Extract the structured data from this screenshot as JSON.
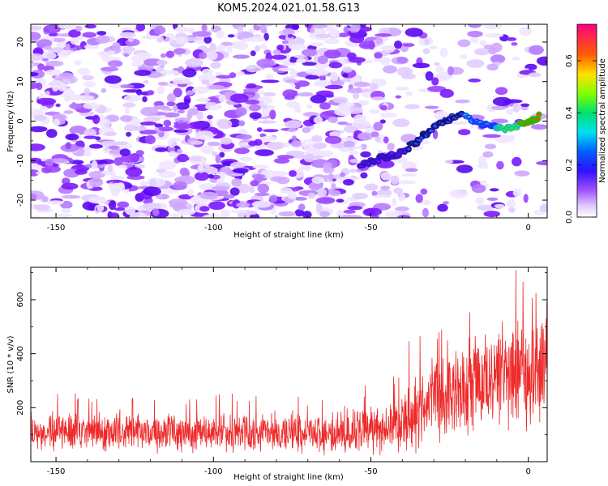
{
  "title": "KOM5.2024.021.01.58.G13",
  "chart_data": [
    {
      "type": "heatmap",
      "xlabel": "Height of straight line (km)",
      "ylabel": "Frequency (Hz)",
      "xlim": [
        -158,
        6
      ],
      "ylim": [
        -24.5,
        24.5
      ],
      "x_ticks": [
        -150,
        -100,
        -50,
        0
      ],
      "y_ticks": [
        -20,
        -10,
        0,
        10,
        20
      ],
      "x_tick_labels": [
        "-150",
        "-100",
        "-50",
        "0"
      ],
      "y_tick_labels": [
        "-20",
        "-10",
        "0",
        "10",
        "20"
      ],
      "colorbar": {
        "label": "Normalized spectral amplitude",
        "range": [
          0,
          0.74
        ],
        "ticks": [
          0,
          0.2,
          0.4,
          0.6
        ],
        "tick_labels": [
          "0.0",
          "0.2",
          "0.4",
          "0.6"
        ]
      },
      "signal_track": {
        "description_points_x": [
          -53,
          -40,
          -34,
          -28,
          -22,
          -15,
          -8,
          0,
          4
        ],
        "description_points_y": [
          -11,
          -8,
          -4,
          -0.5,
          1.5,
          -0.5,
          -2,
          -0.5,
          1.5
        ],
        "peak_amplitude": 0.7
      }
    },
    {
      "type": "line",
      "xlabel": "Height of straight line (km)",
      "ylabel": "SNR (10 * v/v)",
      "xlim": [
        -158,
        6
      ],
      "ylim": [
        0,
        720
      ],
      "x_ticks": [
        -150,
        -100,
        -50,
        0
      ],
      "y_ticks": [
        200,
        400,
        600
      ],
      "x_tick_labels": [
        "-150",
        "-100",
        "-50",
        "0"
      ],
      "y_tick_labels": [
        "200",
        "400",
        "600"
      ],
      "series": [
        {
          "color": "#ee2a2a",
          "envelope_x": [
            -158,
            -140,
            -120,
            -100,
            -80,
            -60,
            -45,
            -38,
            -30,
            -20,
            -10,
            0,
            6
          ],
          "envelope_mean": [
            110,
            110,
            105,
            105,
            105,
            110,
            120,
            160,
            230,
            280,
            320,
            330,
            360
          ],
          "envelope_spread": [
            80,
            90,
            80,
            80,
            80,
            90,
            110,
            150,
            180,
            220,
            240,
            230,
            260
          ],
          "max_value": 710
        }
      ]
    }
  ]
}
